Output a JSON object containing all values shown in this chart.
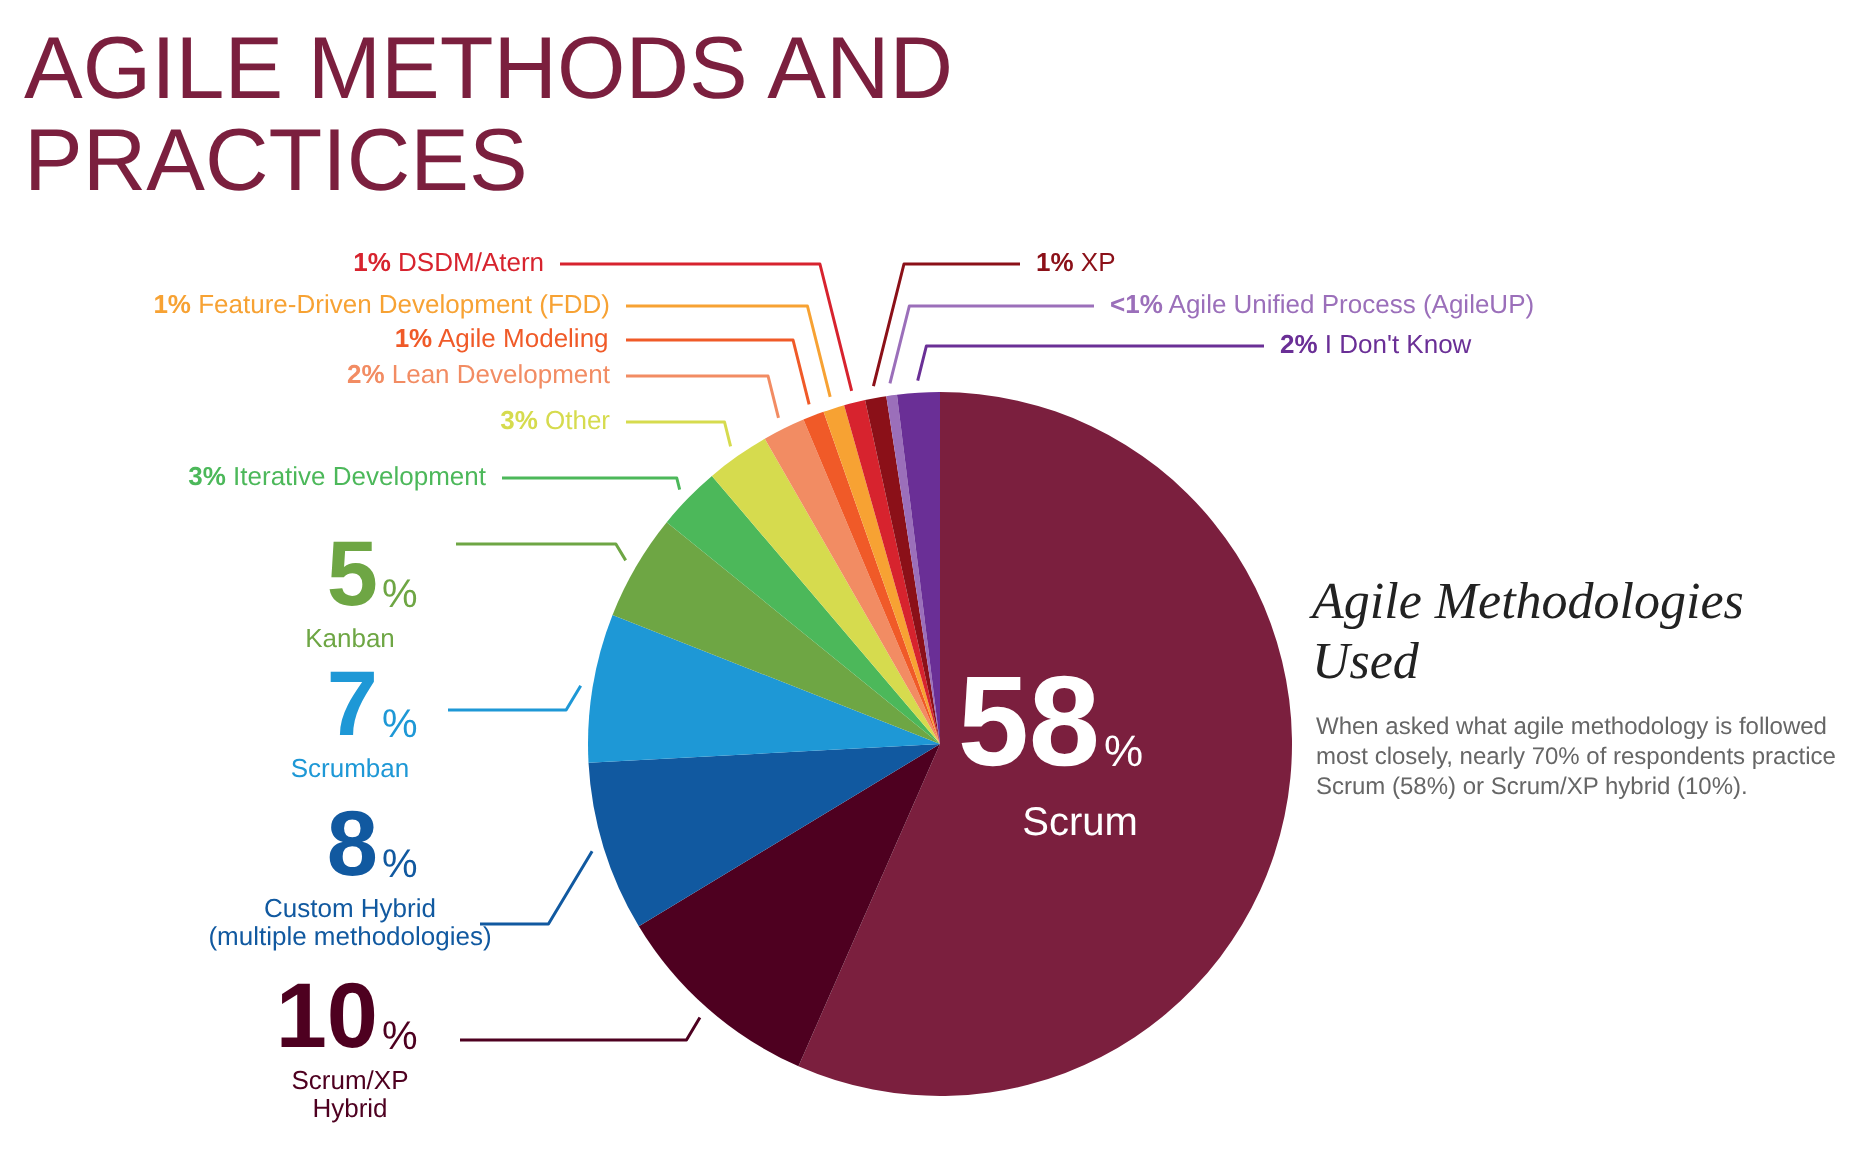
{
  "chart_data": {
    "type": "pie",
    "title": "AGILE METHODS AND PRACTICES",
    "subtitle": "Agile Methodologies Used",
    "annotations": [
      "When asked what agile methodology is followed most closely, nearly 70% of respondents practice Scrum (58%) or Scrum/XP hybrid (10%)."
    ],
    "categories": [
      "Scrum",
      "Scrum/XP Hybrid",
      "Custom Hybrid (multiple methodologies)",
      "Scrumban",
      "Kanban",
      "Iterative Development",
      "Other",
      "Lean Development",
      "Agile Modeling",
      "Feature-Driven Development (FDD)",
      "DSDM/Atern",
      "XP",
      "Agile Unified Process (AgileUP)",
      "I Don't Know"
    ],
    "values": [
      58,
      10,
      8,
      7,
      5,
      3,
      3,
      2,
      1,
      1,
      1,
      1,
      0.5,
      2
    ],
    "value_labels": [
      "58%",
      "10%",
      "8%",
      "7%",
      "5%",
      "3%",
      "3%",
      "2%",
      "1%",
      "1%",
      "1%",
      "1%",
      "<1%",
      "2%"
    ],
    "colors": [
      "#7b1f3e",
      "#4e0020",
      "#1159a0",
      "#1e98d6",
      "#6ea644",
      "#4cb85a",
      "#d6db4e",
      "#f28c63",
      "#f05a28",
      "#f7a233",
      "#d7232e",
      "#8b1018",
      "#9b6fba",
      "#6a2f96"
    ]
  }
}
